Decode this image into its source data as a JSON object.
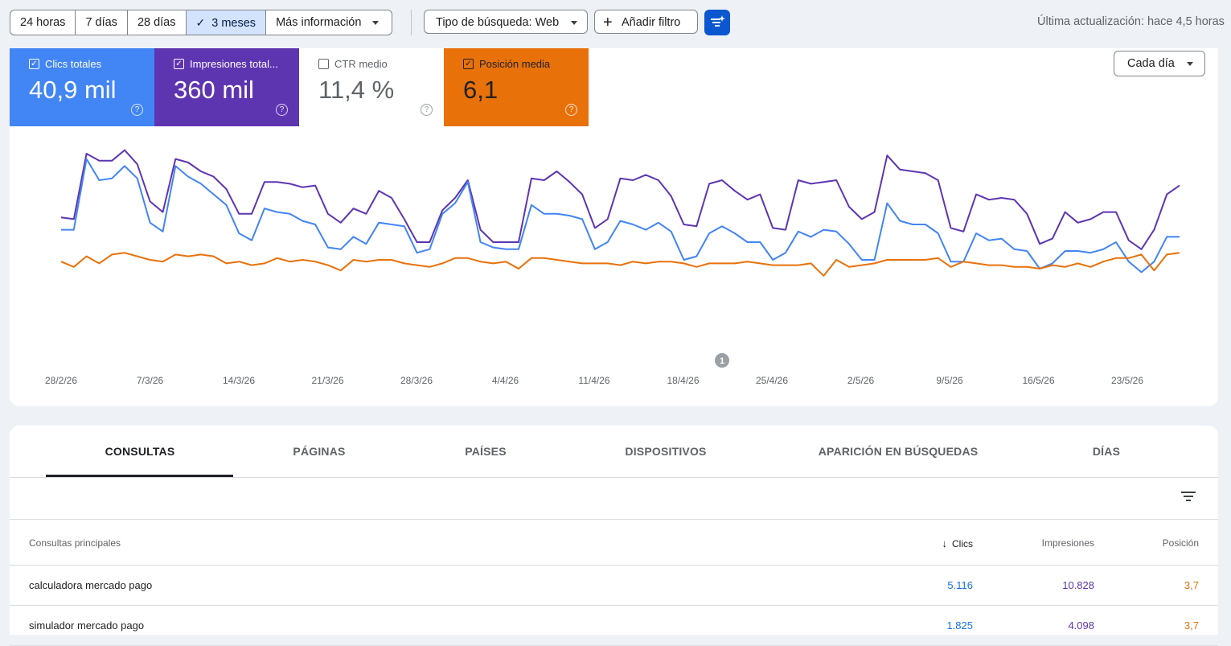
{
  "toolbar": {
    "ranges": [
      "24 horas",
      "7 días",
      "28 días",
      "3 meses"
    ],
    "more_info": "Más información",
    "search_type": "Tipo de búsqueda: Web",
    "add_filter": "Añadir filtro",
    "last_update": "Última actualización: hace 4,5 horas"
  },
  "metrics": {
    "clicks": {
      "label": "Clics totales",
      "value": "40,9 mil"
    },
    "impressions": {
      "label": "Impresiones total...",
      "value": "360 mil"
    },
    "ctr": {
      "label": "CTR medio",
      "value": "11,4 %"
    },
    "position": {
      "label": "Posición media",
      "value": "6,1"
    }
  },
  "granularity": "Cada día",
  "annotation_badge": "1",
  "colors": {
    "clicks": "#4285f4",
    "impressions": "#5e35b1",
    "position": "#e8710a"
  },
  "chart_data": {
    "type": "line",
    "x_ticks": [
      "28/2/26",
      "7/3/26",
      "14/3/26",
      "21/3/26",
      "28/3/26",
      "4/4/26",
      "11/4/26",
      "18/4/26",
      "25/4/26",
      "2/5/26",
      "9/5/26",
      "16/5/26",
      "23/5/26"
    ],
    "series": [
      {
        "name": "Impresiones",
        "values": [
          0.59,
          0.58,
          0.95,
          0.91,
          0.91,
          0.97,
          0.89,
          0.68,
          0.62,
          0.92,
          0.9,
          0.85,
          0.82,
          0.75,
          0.61,
          0.61,
          0.79,
          0.79,
          0.78,
          0.76,
          0.77,
          0.61,
          0.56,
          0.64,
          0.61,
          0.74,
          0.7,
          0.58,
          0.45,
          0.45,
          0.63,
          0.7,
          0.8,
          0.52,
          0.45,
          0.45,
          0.45,
          0.81,
          0.8,
          0.85,
          0.79,
          0.72,
          0.53,
          0.58,
          0.81,
          0.8,
          0.83,
          0.8,
          0.71,
          0.55,
          0.54,
          0.78,
          0.8,
          0.74,
          0.69,
          0.72,
          0.53,
          0.52,
          0.8,
          0.78,
          0.79,
          0.8,
          0.65,
          0.58,
          0.62,
          0.94,
          0.86,
          0.85,
          0.84,
          0.8,
          0.53,
          0.51,
          0.72,
          0.69,
          0.7,
          0.69,
          0.61,
          0.44,
          0.47,
          0.62,
          0.56,
          0.58,
          0.62,
          0.62,
          0.46,
          0.41,
          0.52,
          0.72,
          0.77
        ]
      },
      {
        "name": "Clics",
        "values": [
          0.52,
          0.52,
          0.92,
          0.8,
          0.81,
          0.88,
          0.81,
          0.56,
          0.51,
          0.88,
          0.82,
          0.78,
          0.72,
          0.66,
          0.5,
          0.46,
          0.64,
          0.62,
          0.61,
          0.57,
          0.55,
          0.42,
          0.41,
          0.48,
          0.44,
          0.56,
          0.55,
          0.54,
          0.39,
          0.41,
          0.61,
          0.67,
          0.79,
          0.45,
          0.42,
          0.41,
          0.41,
          0.66,
          0.61,
          0.61,
          0.6,
          0.58,
          0.41,
          0.45,
          0.57,
          0.55,
          0.52,
          0.56,
          0.51,
          0.35,
          0.37,
          0.5,
          0.54,
          0.5,
          0.45,
          0.45,
          0.35,
          0.39,
          0.51,
          0.48,
          0.52,
          0.51,
          0.44,
          0.35,
          0.35,
          0.67,
          0.57,
          0.55,
          0.55,
          0.5,
          0.34,
          0.34,
          0.5,
          0.46,
          0.47,
          0.41,
          0.4,
          0.3,
          0.33,
          0.4,
          0.4,
          0.39,
          0.41,
          0.45,
          0.34,
          0.28,
          0.34,
          0.48,
          0.48
        ]
      },
      {
        "name": "Posición",
        "values": [
          0.34,
          0.31,
          0.37,
          0.33,
          0.38,
          0.39,
          0.37,
          0.35,
          0.34,
          0.38,
          0.37,
          0.38,
          0.37,
          0.33,
          0.34,
          0.32,
          0.33,
          0.36,
          0.34,
          0.35,
          0.34,
          0.32,
          0.29,
          0.35,
          0.34,
          0.35,
          0.35,
          0.33,
          0.32,
          0.31,
          0.33,
          0.36,
          0.36,
          0.34,
          0.33,
          0.34,
          0.3,
          0.36,
          0.36,
          0.35,
          0.34,
          0.33,
          0.33,
          0.33,
          0.32,
          0.34,
          0.33,
          0.34,
          0.34,
          0.33,
          0.31,
          0.33,
          0.33,
          0.33,
          0.34,
          0.33,
          0.32,
          0.32,
          0.32,
          0.33,
          0.26,
          0.35,
          0.31,
          0.32,
          0.33,
          0.35,
          0.35,
          0.35,
          0.35,
          0.36,
          0.31,
          0.34,
          0.33,
          0.32,
          0.32,
          0.31,
          0.31,
          0.3,
          0.32,
          0.31,
          0.33,
          0.31,
          0.34,
          0.36,
          0.36,
          0.38,
          0.29,
          0.38,
          0.39
        ]
      }
    ]
  },
  "tabs": [
    "CONSULTAS",
    "PÁGINAS",
    "PAÍSES",
    "DISPOSITIVOS",
    "APARICIÓN EN BÚSQUEDAS",
    "DÍAS"
  ],
  "table": {
    "headers": {
      "query": "Consultas principales",
      "clicks": "Clics",
      "impressions": "Impresiones",
      "position": "Posición"
    },
    "rows": [
      {
        "query": "calculadora mercado pago",
        "clicks": "5.116",
        "impressions": "10.828",
        "position": "3,7"
      },
      {
        "query": "simulador mercado pago",
        "clicks": "1.825",
        "impressions": "4.098",
        "position": "3,7"
      }
    ]
  }
}
